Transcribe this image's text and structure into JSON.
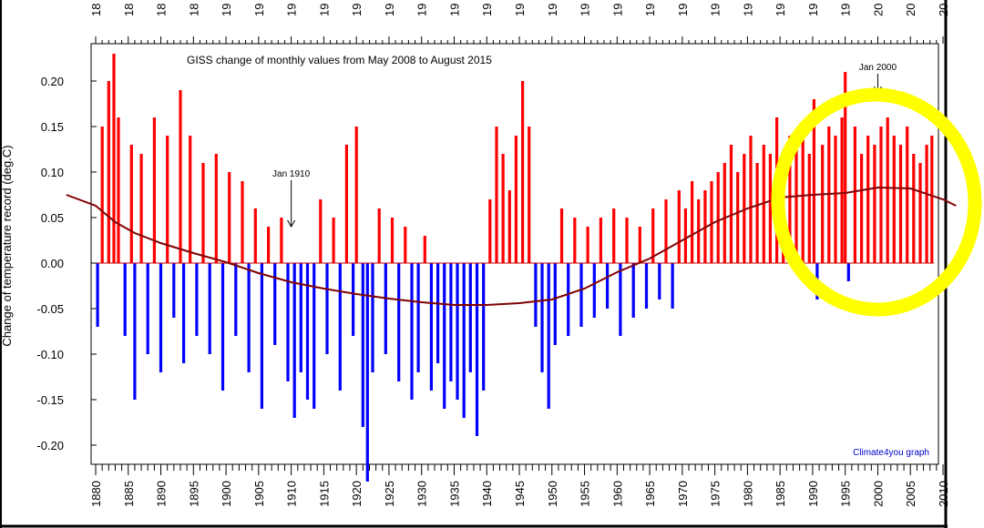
{
  "chart_data": {
    "type": "bar",
    "title": "GISS change of monthly values from May 2008 to August 2015",
    "ylabel": "Change of temperature record (deg.C)",
    "xlabel": "",
    "credit": "Climate4you graph",
    "xlim": [
      1880,
      2010
    ],
    "ylim": [
      -0.24,
      0.24
    ],
    "x_ticks_bottom": [
      "1880",
      "1885",
      "1890",
      "1895",
      "1900",
      "1905",
      "1910",
      "1915",
      "1920",
      "1925",
      "1930",
      "1935",
      "1940",
      "1945",
      "1950",
      "1955",
      "1960",
      "1965",
      "1970",
      "1975",
      "1980",
      "1985",
      "1990",
      "1995",
      "2000",
      "2005",
      "2010"
    ],
    "x_ticks_top": [
      "18",
      "18",
      "18",
      "18",
      "19",
      "19",
      "19",
      "19",
      "19",
      "19",
      "19",
      "19",
      "19",
      "19",
      "19",
      "19",
      "19",
      "19",
      "19",
      "19",
      "19",
      "19",
      "19",
      "19",
      "20",
      "20",
      "20"
    ],
    "y_ticks": [
      {
        "value": 0.2,
        "label": "0.20"
      },
      {
        "value": 0.15,
        "label": "0.15"
      },
      {
        "value": 0.1,
        "label": "0.10"
      },
      {
        "value": 0.05,
        "label": "0.05"
      },
      {
        "value": 0.0,
        "label": "0.00"
      },
      {
        "value": -0.05,
        "label": "-0.05"
      },
      {
        "value": -0.1,
        "label": "-0.10"
      },
      {
        "value": -0.15,
        "label": "-0.15"
      },
      {
        "value": -0.2,
        "label": "-0.20"
      }
    ],
    "series": [
      {
        "name": "monthly change",
        "style": "bars",
        "positive_color": "#ff0000",
        "negative_color": "#0000ff",
        "x": [
          1880.3,
          1881.0,
          1882.0,
          1882.8,
          1883.5,
          1884.5,
          1885.5,
          1886.0,
          1887.0,
          1888.0,
          1889.0,
          1890.0,
          1891.0,
          1892.0,
          1893.0,
          1893.5,
          1894.5,
          1895.5,
          1896.5,
          1897.5,
          1898.5,
          1899.5,
          1900.5,
          1901.5,
          1902.5,
          1903.5,
          1904.5,
          1905.5,
          1906.5,
          1907.5,
          1908.5,
          1909.5,
          1910.5,
          1911.5,
          1912.5,
          1913.5,
          1914.5,
          1915.5,
          1916.5,
          1917.5,
          1918.5,
          1919.5,
          1920.0,
          1921.0,
          1921.7,
          1922.5,
          1923.5,
          1924.5,
          1925.5,
          1926.5,
          1927.5,
          1928.5,
          1929.5,
          1930.5,
          1931.5,
          1932.5,
          1933.5,
          1934.5,
          1935.5,
          1936.5,
          1937.5,
          1938.5,
          1939.5,
          1940.5,
          1941.5,
          1942.5,
          1943.5,
          1944.5,
          1945.5,
          1946.5,
          1947.5,
          1948.5,
          1949.5,
          1950.5,
          1951.5,
          1952.5,
          1953.5,
          1954.5,
          1955.5,
          1956.5,
          1957.5,
          1958.5,
          1959.5,
          1960.5,
          1961.5,
          1962.5,
          1963.5,
          1964.5,
          1965.5,
          1966.5,
          1967.5,
          1968.5,
          1969.5,
          1970.5,
          1971.5,
          1972.5,
          1973.5,
          1974.5,
          1975.5,
          1976.5,
          1977.5,
          1978.5,
          1979.5,
          1980.5,
          1981.5,
          1982.5,
          1983.5,
          1984.5,
          1985.5,
          1986.5,
          1987.5,
          1988.5,
          1989.5,
          1990.2,
          1990.7,
          1991.5,
          1992.5,
          1993.5,
          1994.5,
          1995.0,
          1995.5,
          1996.5,
          1997.5,
          1998.5,
          1999.5,
          2000.5,
          2001.5,
          2002.5,
          2003.5,
          2004.5,
          2005.5,
          2006.5,
          2007.5,
          2008.3
        ],
        "values": [
          -0.07,
          0.15,
          0.2,
          0.23,
          0.16,
          -0.08,
          0.13,
          -0.15,
          0.12,
          -0.1,
          0.16,
          -0.12,
          0.14,
          -0.06,
          0.19,
          -0.11,
          0.14,
          -0.08,
          0.11,
          -0.1,
          0.12,
          -0.14,
          0.1,
          -0.08,
          0.09,
          -0.12,
          0.06,
          -0.16,
          0.04,
          -0.09,
          0.05,
          -0.13,
          -0.17,
          -0.12,
          -0.15,
          -0.16,
          0.07,
          -0.1,
          0.05,
          -0.14,
          0.13,
          -0.08,
          0.15,
          -0.18,
          -0.24,
          -0.12,
          0.06,
          -0.1,
          0.05,
          -0.13,
          0.04,
          -0.15,
          -0.12,
          0.03,
          -0.14,
          -0.11,
          -0.16,
          -0.13,
          -0.15,
          -0.17,
          -0.12,
          -0.19,
          -0.14,
          0.07,
          0.15,
          0.12,
          0.08,
          0.14,
          0.2,
          0.15,
          -0.07,
          -0.12,
          -0.16,
          -0.09,
          0.06,
          -0.08,
          0.05,
          -0.07,
          0.04,
          -0.06,
          0.05,
          -0.05,
          0.06,
          -0.08,
          0.05,
          -0.06,
          0.04,
          -0.05,
          0.06,
          -0.04,
          0.07,
          -0.05,
          0.08,
          0.06,
          0.09,
          0.07,
          0.08,
          0.09,
          0.1,
          0.11,
          0.13,
          0.1,
          0.12,
          0.14,
          0.11,
          0.13,
          0.12,
          0.16,
          0.11,
          0.14,
          0.13,
          0.15,
          0.12,
          0.18,
          -0.04,
          0.13,
          0.15,
          0.14,
          0.16,
          0.21,
          -0.02,
          0.15,
          0.12,
          0.14,
          0.13,
          0.15,
          0.16,
          0.14,
          0.13,
          0.15,
          0.12,
          0.11,
          0.13,
          0.14
        ]
      },
      {
        "name": "smoothed trend",
        "style": "line",
        "color": "#800000",
        "x": [
          1875.5,
          1880,
          1883,
          1886,
          1890,
          1895,
          1900,
          1905,
          1910,
          1915,
          1920,
          1925,
          1930,
          1935,
          1940,
          1945,
          1950,
          1955,
          1960,
          1965,
          1970,
          1975,
          1980,
          1985,
          1990,
          1995,
          2000,
          2005,
          2010,
          2012
        ],
        "values": [
          0.075,
          0.063,
          0.045,
          0.033,
          0.022,
          0.011,
          0.001,
          -0.011,
          -0.021,
          -0.028,
          -0.034,
          -0.039,
          -0.043,
          -0.046,
          -0.046,
          -0.044,
          -0.04,
          -0.028,
          -0.01,
          0.005,
          0.025,
          0.045,
          0.06,
          0.072,
          0.075,
          0.077,
          0.083,
          0.082,
          0.07,
          0.063
        ]
      }
    ],
    "annotations": [
      {
        "text": "Jan 1910",
        "x": 1910.0,
        "y": 0.095,
        "arrow_to": [
          1910.0,
          0.04
        ]
      },
      {
        "text": "Jan 2000",
        "x": 2000.0,
        "y": 0.212,
        "arrow_to": [
          2000.0,
          0.187
        ]
      }
    ],
    "highlight": {
      "shape": "ellipse",
      "color": "#ffff00",
      "around_years": "1986-2010"
    }
  }
}
